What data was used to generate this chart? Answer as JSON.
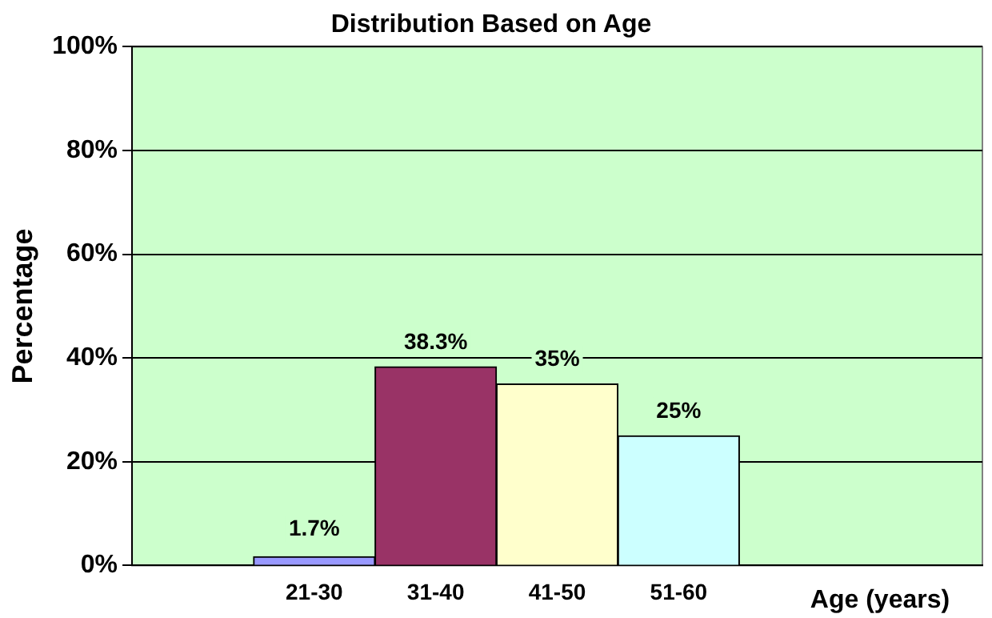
{
  "chart_data": {
    "type": "bar",
    "title": "Distribution Based on Age",
    "xlabel": "Age (years)",
    "ylabel": "Percentage",
    "categories": [
      null,
      "21-30",
      "31-40",
      "41-50",
      "51-60",
      null,
      null
    ],
    "values": [
      null,
      1.7,
      38.3,
      35,
      25,
      null,
      null
    ],
    "colors": [
      null,
      "#9999ff",
      "#993366",
      "#ffffcc",
      "#ccffff",
      null,
      null
    ],
    "value_labels": [
      null,
      "1.7%",
      "38.3%",
      "35%",
      "25%",
      null,
      null
    ],
    "ylim": [
      0,
      100
    ],
    "yticks": [
      {
        "value": 0,
        "label": "0%"
      },
      {
        "value": 20,
        "label": "20%"
      },
      {
        "value": 40,
        "label": "40%"
      },
      {
        "value": 60,
        "label": "60%"
      },
      {
        "value": 80,
        "label": "80%"
      },
      {
        "value": 100,
        "label": "100%"
      }
    ],
    "grid": "y",
    "legend": false
  }
}
